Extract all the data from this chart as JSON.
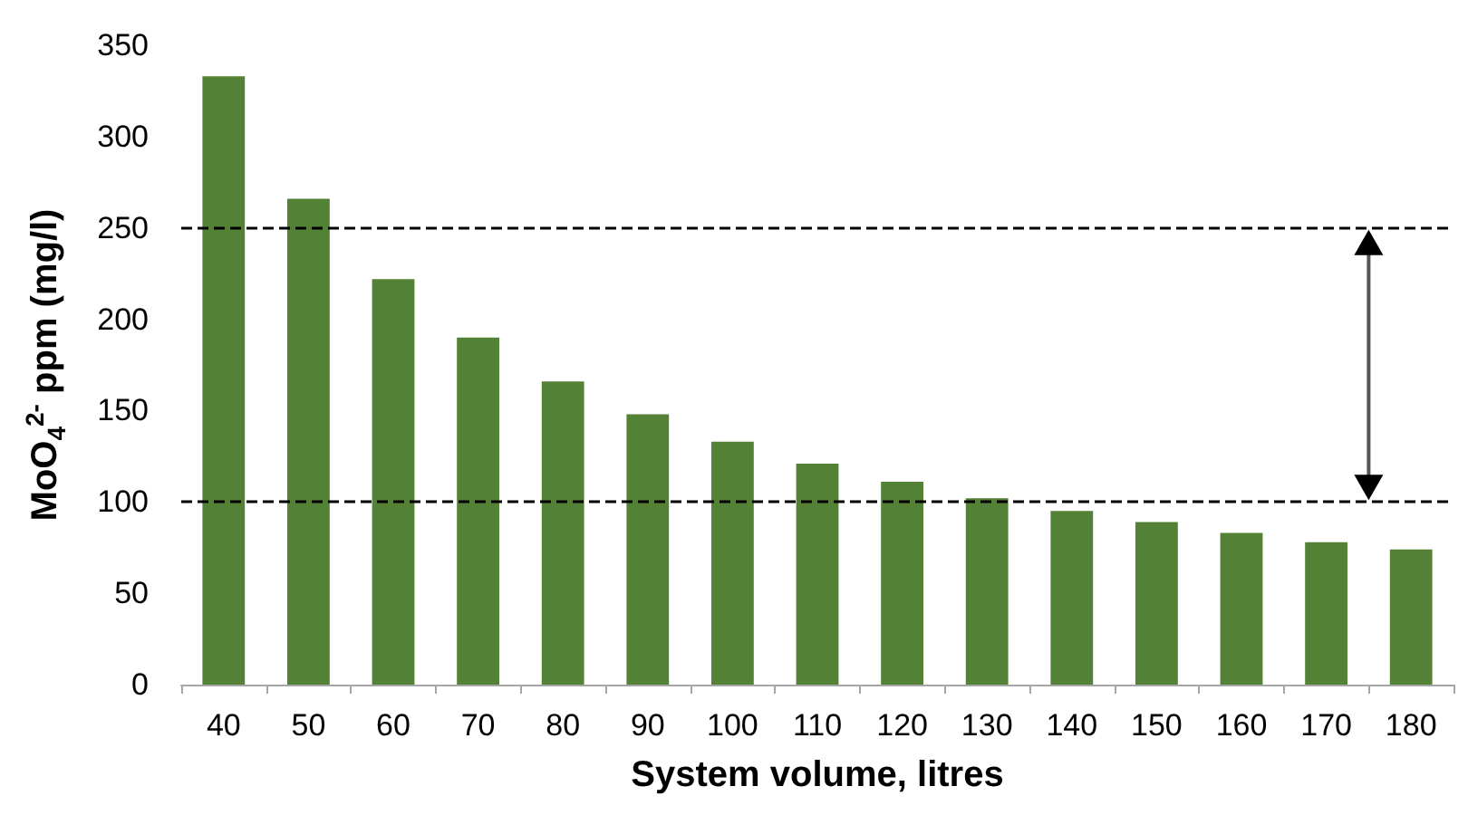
{
  "chart_data": {
    "type": "bar",
    "xlabel": "System volume, litres",
    "ylabel": "MoO$_{4}$$^{2-}$ ppm (mg/l)",
    "categories": [
      "40",
      "50",
      "60",
      "70",
      "80",
      "90",
      "100",
      "110",
      "120",
      "130",
      "140",
      "150",
      "160",
      "170",
      "180"
    ],
    "values": [
      333,
      266,
      222,
      190,
      166,
      148,
      133,
      121,
      111,
      102,
      95,
      89,
      83,
      78,
      74
    ],
    "color": "#538135",
    "ylim": [
      0,
      350
    ],
    "yticks": [
      0,
      50,
      100,
      150,
      200,
      250,
      300,
      350
    ],
    "grid": false,
    "ref_lines": [
      {
        "axis": "y",
        "value": 250,
        "color": "#000000",
        "line_style": "dashed"
      },
      {
        "axis": "y",
        "value": 100,
        "color": "#000000",
        "line_style": "dashed"
      }
    ]
  }
}
